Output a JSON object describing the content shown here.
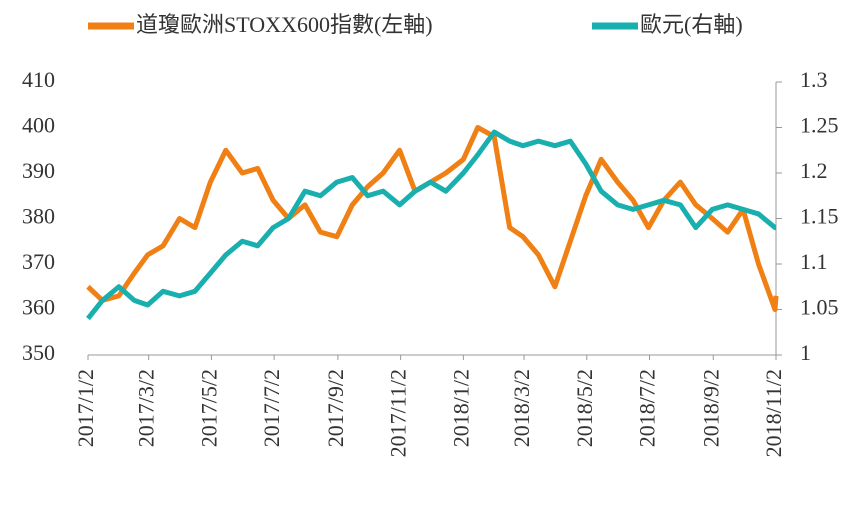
{
  "chart_data": {
    "type": "line",
    "x": [
      "2017/1/2",
      "2017/1/16",
      "2017/2/1",
      "2017/2/16",
      "2017/3/1",
      "2017/3/16",
      "2017/4/1",
      "2017/4/16",
      "2017/5/1",
      "2017/5/16",
      "2017/6/1",
      "2017/6/16",
      "2017/7/1",
      "2017/7/16",
      "2017/8/1",
      "2017/8/16",
      "2017/9/1",
      "2017/9/16",
      "2017/10/1",
      "2017/10/16",
      "2017/11/1",
      "2017/11/16",
      "2017/12/1",
      "2017/12/16",
      "2018/1/2",
      "2018/1/16",
      "2018/2/1",
      "2018/2/16",
      "2018/3/1",
      "2018/3/16",
      "2018/4/1",
      "2018/4/16",
      "2018/5/1",
      "2018/5/16",
      "2018/6/1",
      "2018/6/16",
      "2018/7/1",
      "2018/7/16",
      "2018/8/1",
      "2018/8/16",
      "2018/9/1",
      "2018/9/16",
      "2018/10/1",
      "2018/10/16",
      "2018/11/1",
      "2018/11/2"
    ],
    "series": [
      {
        "name": "道瓊歐洲STOXX600指數(左軸)",
        "color": "#f07f14",
        "axis": "y",
        "values": [
          365,
          362,
          363,
          368,
          372,
          374,
          380,
          378,
          388,
          395,
          390,
          391,
          384,
          380,
          383,
          377,
          376,
          383,
          387,
          390,
          395,
          386,
          388,
          390,
          393,
          400,
          398,
          378,
          376,
          372,
          365,
          375,
          385,
          393,
          388,
          384,
          378,
          384,
          388,
          383,
          380,
          377,
          382,
          370,
          360,
          363
        ]
      },
      {
        "name": "歐元(右軸)",
        "color": "#1aafaf",
        "axis": "y2",
        "values": [
          1.04,
          1.06,
          1.075,
          1.06,
          1.055,
          1.07,
          1.065,
          1.07,
          1.09,
          1.11,
          1.125,
          1.12,
          1.14,
          1.15,
          1.18,
          1.175,
          1.19,
          1.195,
          1.175,
          1.18,
          1.165,
          1.18,
          1.19,
          1.18,
          1.2,
          1.22,
          1.245,
          1.235,
          1.23,
          1.235,
          1.23,
          1.235,
          1.21,
          1.18,
          1.165,
          1.16,
          1.165,
          1.17,
          1.165,
          1.14,
          1.16,
          1.165,
          1.16,
          1.155,
          1.14,
          1.14
        ]
      }
    ],
    "xticks": [
      "2017/1/2",
      "2017/3/2",
      "2017/5/2",
      "2017/7/2",
      "2017/9/2",
      "2017/11/2",
      "2018/1/2",
      "2018/3/2",
      "2018/5/2",
      "2018/7/2",
      "2018/9/2",
      "2018/11/2"
    ],
    "ylim": [
      350,
      410
    ],
    "yticks": [
      350,
      360,
      370,
      380,
      390,
      400,
      410
    ],
    "y2lim": [
      1,
      1.3
    ],
    "y2ticks": [
      1,
      1.05,
      1.1,
      1.15,
      1.2,
      1.25,
      1.3
    ],
    "grid": false
  }
}
